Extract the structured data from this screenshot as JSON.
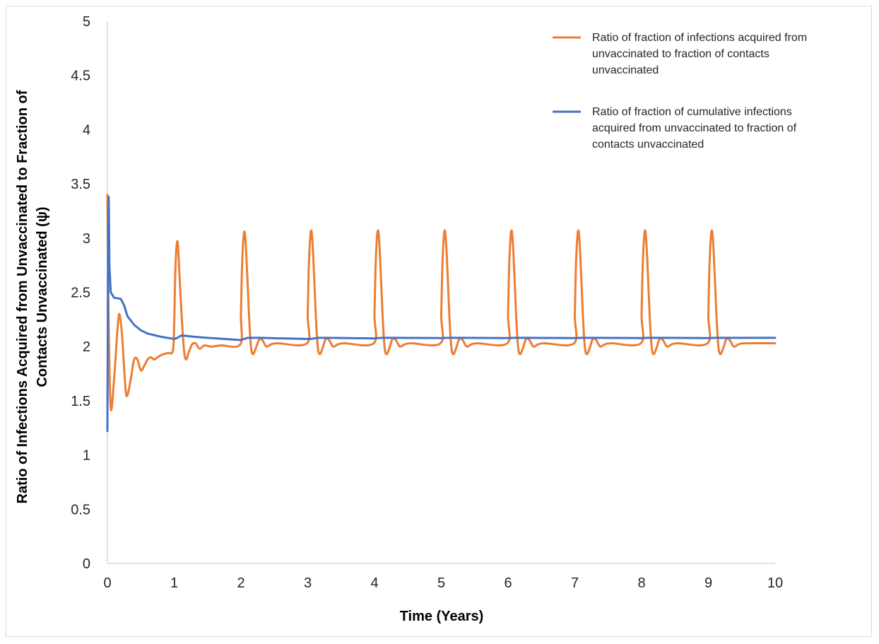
{
  "chart_data": {
    "type": "line",
    "title": "",
    "xlabel": "Time (Years)",
    "ylabel_lines": [
      "Ratio of Infections Acquired from Unvaccinated to Fraction of",
      "Contacts Unvaccinated (ψ)"
    ],
    "xlim": [
      0,
      10
    ],
    "ylim": [
      0,
      5
    ],
    "x_ticks": [
      "0",
      "1",
      "2",
      "3",
      "4",
      "5",
      "6",
      "7",
      "8",
      "9",
      "10"
    ],
    "y_ticks": [
      "0",
      "0.5",
      "1",
      "1.5",
      "2",
      "2.5",
      "3",
      "3.5",
      "4",
      "4.5",
      "5"
    ],
    "grid": false,
    "legend_position": "top-right",
    "series": [
      {
        "name_lines": [
          "Ratio of fraction of infections acquired from",
          "unvaccinated to fraction of contacts",
          "unvaccinated"
        ],
        "color": "#ed7d31",
        "shape": "spline",
        "points": [
          [
            0,
            3.4
          ],
          [
            0.02,
            2.2
          ],
          [
            0.05,
            1.43
          ],
          [
            0.1,
            1.7
          ],
          [
            0.15,
            2.15
          ],
          [
            0.18,
            2.3
          ],
          [
            0.22,
            2.1
          ],
          [
            0.27,
            1.62
          ],
          [
            0.3,
            1.55
          ],
          [
            0.35,
            1.7
          ],
          [
            0.4,
            1.88
          ],
          [
            0.45,
            1.88
          ],
          [
            0.5,
            1.78
          ],
          [
            0.55,
            1.82
          ],
          [
            0.6,
            1.88
          ],
          [
            0.65,
            1.9
          ],
          [
            0.7,
            1.88
          ],
          [
            0.75,
            1.9
          ],
          [
            0.8,
            1.92
          ],
          [
            0.9,
            1.94
          ],
          [
            0.98,
            1.96
          ],
          [
            1.0,
            2.2
          ],
          [
            1.02,
            2.75
          ],
          [
            1.05,
            2.97
          ],
          [
            1.08,
            2.65
          ],
          [
            1.12,
            2.2
          ],
          [
            1.15,
            1.95
          ],
          [
            1.18,
            1.88
          ],
          [
            1.22,
            1.95
          ],
          [
            1.27,
            2.02
          ],
          [
            1.32,
            2.03
          ],
          [
            1.38,
            1.98
          ],
          [
            1.45,
            2.01
          ],
          [
            1.55,
            2.0
          ],
          [
            1.7,
            2.01
          ],
          [
            1.99,
            2.02
          ],
          [
            2.0,
            2.3
          ],
          [
            2.02,
            2.8
          ],
          [
            2.05,
            3.06
          ],
          [
            2.08,
            2.85
          ],
          [
            2.12,
            2.3
          ],
          [
            2.15,
            2.0
          ],
          [
            2.18,
            1.93
          ],
          [
            2.22,
            1.98
          ],
          [
            2.27,
            2.06
          ],
          [
            2.32,
            2.06
          ],
          [
            2.38,
            2.0
          ],
          [
            2.45,
            2.02
          ],
          [
            2.55,
            2.03
          ],
          [
            2.99,
            2.03
          ],
          [
            3.0,
            2.3
          ],
          [
            3.02,
            2.8
          ],
          [
            3.05,
            3.07
          ],
          [
            3.08,
            2.87
          ],
          [
            3.12,
            2.3
          ],
          [
            3.15,
            2.0
          ],
          [
            3.18,
            1.93
          ],
          [
            3.22,
            1.98
          ],
          [
            3.27,
            2.07
          ],
          [
            3.32,
            2.06
          ],
          [
            3.38,
            2.0
          ],
          [
            3.45,
            2.02
          ],
          [
            3.55,
            2.03
          ],
          [
            3.99,
            2.03
          ],
          [
            4.0,
            2.3
          ],
          [
            4.02,
            2.8
          ],
          [
            4.05,
            3.07
          ],
          [
            4.08,
            2.87
          ],
          [
            4.12,
            2.3
          ],
          [
            4.15,
            2.0
          ],
          [
            4.18,
            1.93
          ],
          [
            4.22,
            1.98
          ],
          [
            4.27,
            2.07
          ],
          [
            4.32,
            2.06
          ],
          [
            4.38,
            2.0
          ],
          [
            4.45,
            2.02
          ],
          [
            4.55,
            2.03
          ],
          [
            4.99,
            2.03
          ],
          [
            5.0,
            2.3
          ],
          [
            5.02,
            2.8
          ],
          [
            5.05,
            3.07
          ],
          [
            5.08,
            2.87
          ],
          [
            5.12,
            2.3
          ],
          [
            5.15,
            2.0
          ],
          [
            5.18,
            1.93
          ],
          [
            5.22,
            1.98
          ],
          [
            5.27,
            2.07
          ],
          [
            5.32,
            2.06
          ],
          [
            5.38,
            2.0
          ],
          [
            5.45,
            2.02
          ],
          [
            5.55,
            2.03
          ],
          [
            5.99,
            2.03
          ],
          [
            6.0,
            2.3
          ],
          [
            6.02,
            2.8
          ],
          [
            6.05,
            3.07
          ],
          [
            6.08,
            2.87
          ],
          [
            6.12,
            2.3
          ],
          [
            6.15,
            2.0
          ],
          [
            6.18,
            1.93
          ],
          [
            6.22,
            1.98
          ],
          [
            6.27,
            2.07
          ],
          [
            6.32,
            2.06
          ],
          [
            6.38,
            2.0
          ],
          [
            6.45,
            2.02
          ],
          [
            6.55,
            2.03
          ],
          [
            6.99,
            2.03
          ],
          [
            7.0,
            2.3
          ],
          [
            7.02,
            2.8
          ],
          [
            7.05,
            3.07
          ],
          [
            7.08,
            2.87
          ],
          [
            7.12,
            2.3
          ],
          [
            7.15,
            2.0
          ],
          [
            7.18,
            1.93
          ],
          [
            7.22,
            1.98
          ],
          [
            7.27,
            2.07
          ],
          [
            7.32,
            2.06
          ],
          [
            7.38,
            2.0
          ],
          [
            7.45,
            2.02
          ],
          [
            7.55,
            2.03
          ],
          [
            7.99,
            2.03
          ],
          [
            8.0,
            2.3
          ],
          [
            8.02,
            2.8
          ],
          [
            8.05,
            3.07
          ],
          [
            8.08,
            2.87
          ],
          [
            8.12,
            2.3
          ],
          [
            8.15,
            2.0
          ],
          [
            8.18,
            1.93
          ],
          [
            8.22,
            1.98
          ],
          [
            8.27,
            2.07
          ],
          [
            8.32,
            2.06
          ],
          [
            8.38,
            2.0
          ],
          [
            8.45,
            2.02
          ],
          [
            8.55,
            2.03
          ],
          [
            8.99,
            2.03
          ],
          [
            9.0,
            2.3
          ],
          [
            9.02,
            2.8
          ],
          [
            9.05,
            3.07
          ],
          [
            9.08,
            2.87
          ],
          [
            9.12,
            2.3
          ],
          [
            9.15,
            2.0
          ],
          [
            9.18,
            1.93
          ],
          [
            9.22,
            1.98
          ],
          [
            9.27,
            2.07
          ],
          [
            9.32,
            2.06
          ],
          [
            9.38,
            2.0
          ],
          [
            9.45,
            2.02
          ],
          [
            9.55,
            2.03
          ],
          [
            10.0,
            2.03
          ]
        ]
      },
      {
        "name_lines": [
          "Ratio of fraction of cumulative infections",
          "acquired from unvaccinated to fraction of",
          "contacts unvaccinated"
        ],
        "color": "#4472c4",
        "shape": "linear",
        "points": [
          [
            0,
            1.22
          ],
          [
            0.01,
            3.05
          ],
          [
            0.02,
            3.38
          ],
          [
            0.03,
            2.75
          ],
          [
            0.05,
            2.5
          ],
          [
            0.1,
            2.45
          ],
          [
            0.2,
            2.44
          ],
          [
            0.25,
            2.38
          ],
          [
            0.3,
            2.28
          ],
          [
            0.4,
            2.2
          ],
          [
            0.5,
            2.15
          ],
          [
            0.6,
            2.12
          ],
          [
            0.8,
            2.09
          ],
          [
            1.0,
            2.07
          ],
          [
            1.05,
            2.08
          ],
          [
            1.1,
            2.1
          ],
          [
            1.15,
            2.1
          ],
          [
            1.3,
            2.09
          ],
          [
            1.5,
            2.08
          ],
          [
            1.99,
            2.06
          ],
          [
            2.05,
            2.07
          ],
          [
            2.1,
            2.08
          ],
          [
            2.15,
            2.08
          ],
          [
            2.3,
            2.08
          ],
          [
            3.0,
            2.07
          ],
          [
            3.05,
            2.07
          ],
          [
            3.15,
            2.08
          ],
          [
            3.3,
            2.08
          ],
          [
            4.0,
            2.075
          ],
          [
            4.1,
            2.08
          ],
          [
            4.3,
            2.08
          ],
          [
            5.0,
            2.078
          ],
          [
            5.1,
            2.08
          ],
          [
            5.3,
            2.08
          ],
          [
            6.0,
            2.078
          ],
          [
            6.1,
            2.08
          ],
          [
            6.3,
            2.08
          ],
          [
            7.0,
            2.078
          ],
          [
            7.1,
            2.08
          ],
          [
            7.3,
            2.08
          ],
          [
            8.0,
            2.078
          ],
          [
            8.1,
            2.08
          ],
          [
            8.3,
            2.08
          ],
          [
            9.0,
            2.078
          ],
          [
            9.1,
            2.08
          ],
          [
            10.0,
            2.08
          ]
        ]
      }
    ]
  }
}
